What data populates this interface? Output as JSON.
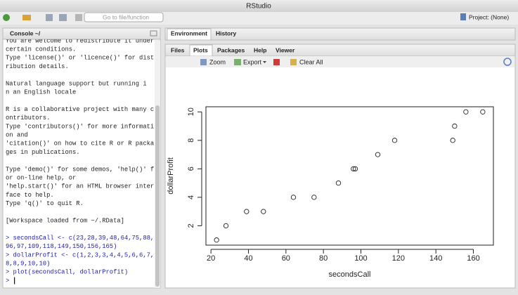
{
  "window": {
    "title": "RStudio"
  },
  "toolbar": {
    "search_placeholder": "Go to file/function",
    "project": "Project: (None)"
  },
  "console": {
    "title": "Console ~/",
    "blocks": [
      [
        "You are welcome to redistribute it under",
        " certain conditions.",
        "Type 'license()' or 'licence()' for dist",
        "ribution details."
      ],
      [
        "  Natural language support but running i",
        "n an English locale"
      ],
      [
        "R is a collaborative project with many c",
        "ontributors.",
        "Type 'contributors()' for more informati",
        "on and",
        "'citation()' on how to cite R or R packa",
        "ges in publications."
      ],
      [
        "Type 'demo()' for some demos, 'help()' f",
        "or on-line help, or",
        "'help.start()' for an HTML browser inter",
        "face to help.",
        "Type 'q()' to quit R."
      ],
      [
        "[Workspace loaded from ~/.RData]"
      ]
    ],
    "commands": [
      "> secondsCall <- c(23,28,39,48,64,75,88,",
      "96,97,109,118,149,150,156,165)",
      "> dollarProfit <- c(1,2,3,3,4,4,5,6,6,7,",
      "8,8,9,10,10)",
      "> plot(secondsCall, dollarProfit)"
    ],
    "prompt": ">"
  },
  "environment_tabs": [
    "Environment",
    "History"
  ],
  "viewer_tabs": [
    "Files",
    "Plots",
    "Packages",
    "Help",
    "Viewer"
  ],
  "plot_toolbar": {
    "zoom": "Zoom",
    "export": "Export",
    "clear": "Clear All"
  },
  "chart_data": {
    "type": "scatter",
    "x_label": "secondsCall",
    "y_label": "dollarProfit",
    "x": [
      23,
      28,
      39,
      48,
      64,
      75,
      88,
      96,
      97,
      109,
      118,
      149,
      150,
      156,
      165
    ],
    "values": [
      1,
      2,
      3,
      3,
      4,
      4,
      5,
      6,
      6,
      7,
      8,
      8,
      9,
      10,
      10
    ],
    "color": "#222222",
    "xlim": [
      17.32,
      170.68
    ],
    "ylim": [
      0.64,
      10.36
    ],
    "xticks": [
      20,
      40,
      60,
      80,
      100,
      120,
      140,
      160
    ],
    "yticks": [
      2,
      4,
      6,
      8,
      10
    ]
  }
}
